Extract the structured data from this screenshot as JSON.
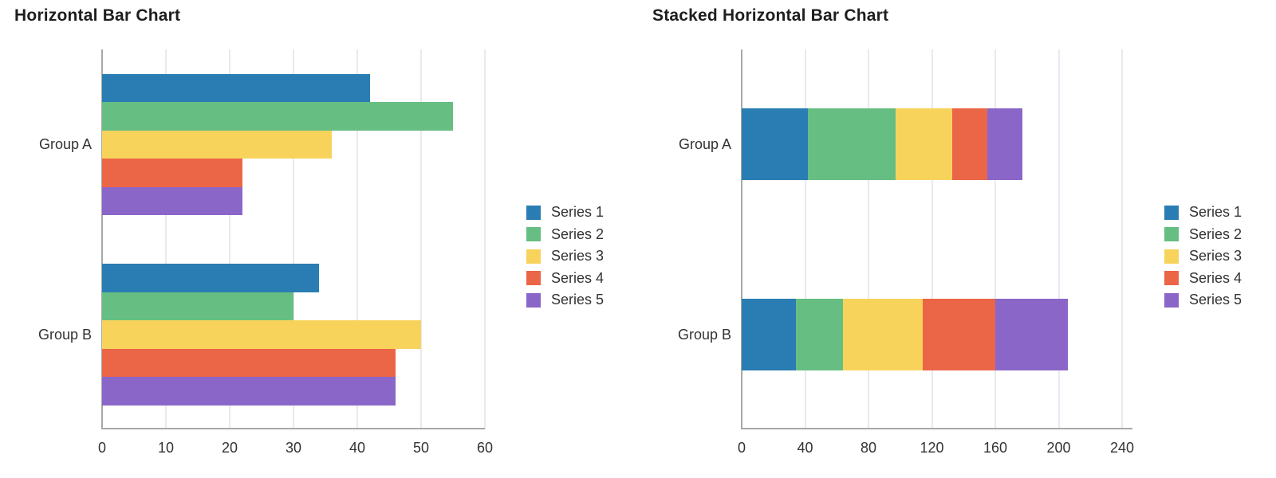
{
  "chart_data": [
    {
      "type": "bar",
      "orientation": "horizontal",
      "title": "Horizontal Bar Chart",
      "categories": [
        "Group A",
        "Group B"
      ],
      "series": [
        {
          "name": "Series 1",
          "color": "#2a7db2",
          "values": [
            42,
            34
          ]
        },
        {
          "name": "Series 2",
          "color": "#66be82",
          "values": [
            55,
            30
          ]
        },
        {
          "name": "Series 3",
          "color": "#f8d35c",
          "values": [
            36,
            50
          ]
        },
        {
          "name": "Series 4",
          "color": "#eb6547",
          "values": [
            22,
            46
          ]
        },
        {
          "name": "Series 5",
          "color": "#8a66c8",
          "values": [
            22,
            46
          ]
        }
      ],
      "xlim": [
        0,
        60
      ],
      "xticks": [
        0,
        10,
        20,
        30,
        40,
        50,
        60
      ],
      "grid": true,
      "legend_position": "right"
    },
    {
      "type": "stacked-bar",
      "orientation": "horizontal",
      "title": "Stacked Horizontal Bar Chart",
      "categories": [
        "Group A",
        "Group B"
      ],
      "series": [
        {
          "name": "Series 1",
          "color": "#2a7db2",
          "values": [
            42,
            34
          ]
        },
        {
          "name": "Series 2",
          "color": "#66be82",
          "values": [
            55,
            30
          ]
        },
        {
          "name": "Series 3",
          "color": "#f8d35c",
          "values": [
            36,
            50
          ]
        },
        {
          "name": "Series 4",
          "color": "#eb6547",
          "values": [
            22,
            46
          ]
        },
        {
          "name": "Series 5",
          "color": "#8a66c8",
          "values": [
            22,
            46
          ]
        }
      ],
      "xlim": [
        0,
        240
      ],
      "xticks": [
        0,
        40,
        80,
        120,
        160,
        200,
        240
      ],
      "grid": true,
      "legend_position": "right"
    }
  ],
  "colors": {
    "grid": "#e7eaf0",
    "spine": "#a8a8a8",
    "text": "#333333",
    "title": "#1e1e1e"
  }
}
